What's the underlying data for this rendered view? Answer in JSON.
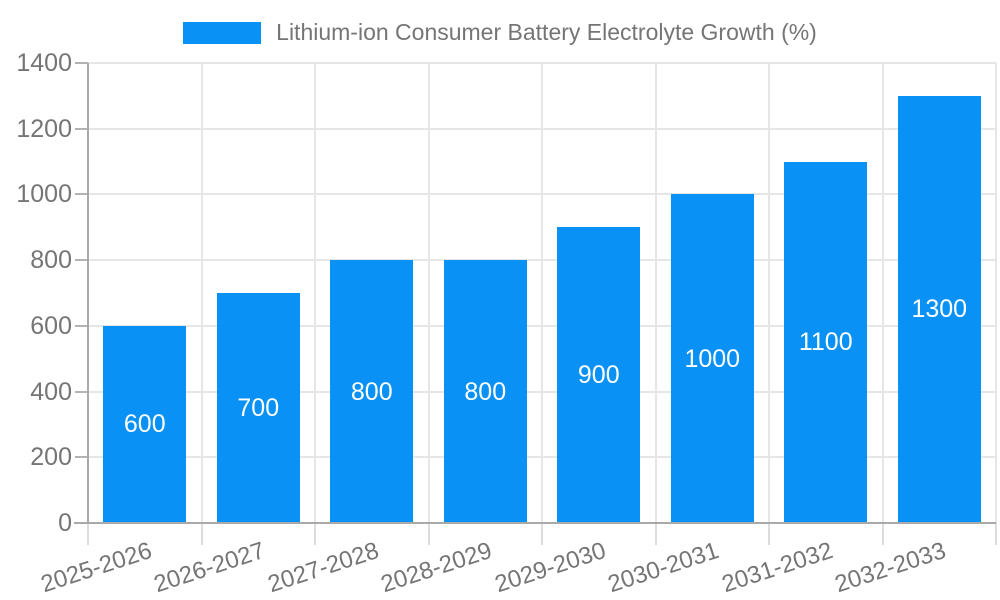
{
  "chart_data": {
    "type": "bar",
    "title": "Lithium-ion Consumer Battery Electrolyte Growth (%)",
    "categories": [
      "2025-2026",
      "2026-2027",
      "2027-2028",
      "2028-2029",
      "2029-2030",
      "2030-2031",
      "2031-2032",
      "2032-2033"
    ],
    "values": [
      600,
      700,
      800,
      800,
      900,
      1000,
      1100,
      1300
    ],
    "bar_labels": [
      "600",
      "700",
      "800",
      "800",
      "900",
      "1000",
      "1100",
      "1300"
    ],
    "xlabel": "",
    "ylabel": "",
    "ylim": [
      0,
      1400
    ],
    "ytick_step": 200,
    "yticks": [
      0,
      200,
      400,
      600,
      800,
      1000,
      1200,
      1400
    ],
    "grid": true,
    "legend_position": "top",
    "bar_color": "#0a91f5",
    "bar_label_color": "#ffffff"
  },
  "colors": {
    "bar": "#0a91f5",
    "gridline": "#e6e6e6",
    "axis_line": "#a9a9a9",
    "y_tick": "#b3b3b3",
    "x_tick": "#dcdcdc",
    "axis_text": "#757575",
    "background": "#ffffff"
  }
}
